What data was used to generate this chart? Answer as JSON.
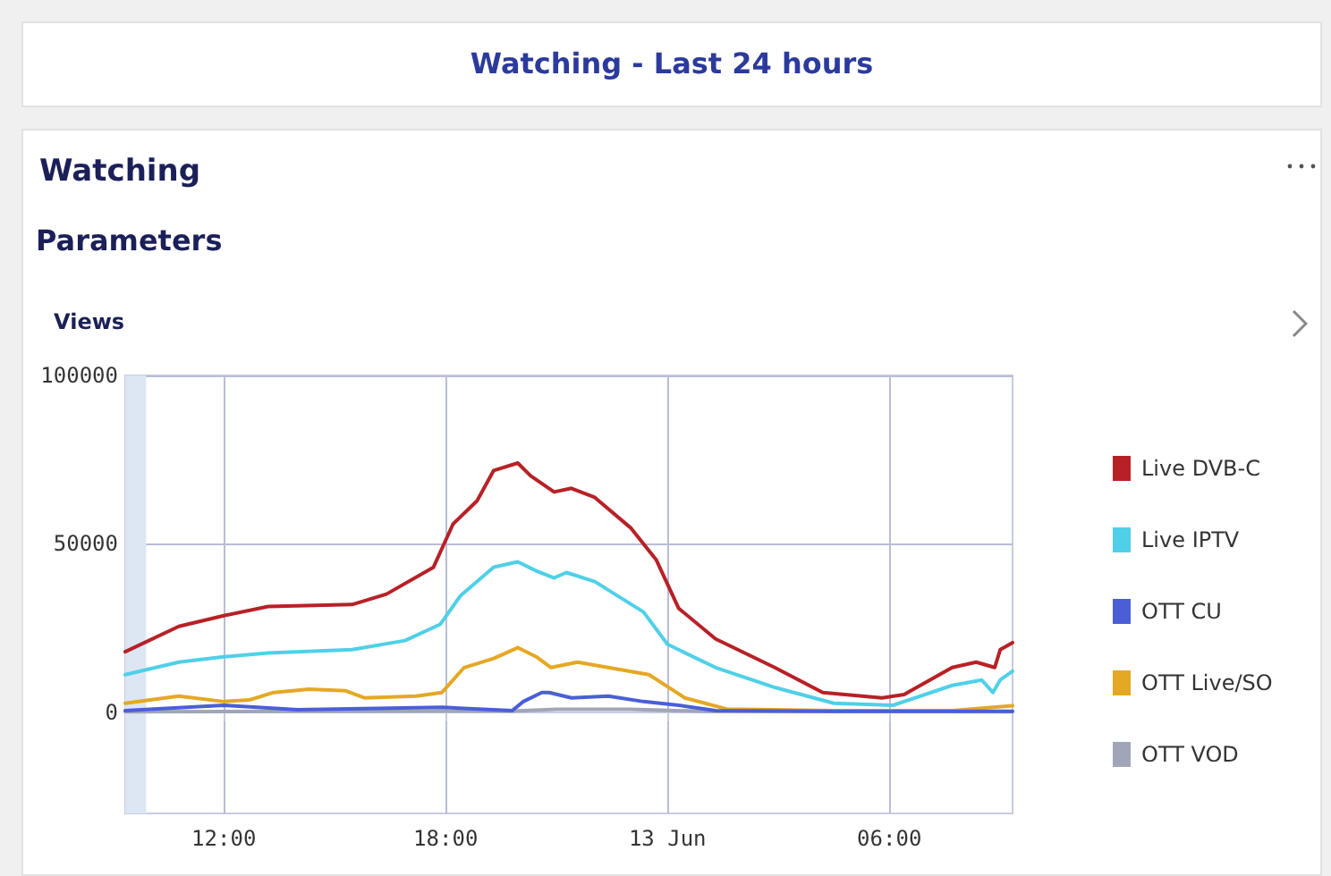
{
  "chart_data": {
    "type": "line",
    "title": "Watching - Last 24 hours",
    "subtitle": "Watching",
    "annotations": [
      "Parameters"
    ],
    "ylabel": "Views",
    "xlim": [
      "--06-12T09:20",
      "--06-13T09:20"
    ],
    "xticks": [
      {
        "value": "--06-12T12:00",
        "label": "12:00"
      },
      {
        "value": "--06-12T18:00",
        "label": "18:00"
      },
      {
        "value": "--06-13T00:00",
        "label": "13 Jun"
      },
      {
        "value": "--06-13T06:00",
        "label": "06:00"
      }
    ],
    "ylim": [
      -30000,
      100000
    ],
    "yticks": [
      0,
      50000,
      100000
    ],
    "grid": true,
    "legend": "right",
    "marker": "none",
    "line_style": "solid",
    "bands": [
      {
        "axis": "x",
        "from": "--06-12T09:20",
        "to": "--06-12T09:54",
        "color": "#dde7f3"
      }
    ],
    "series": [
      {
        "name": "Live DVB-C",
        "color": "#b72126",
        "x": [
          "--06-12T09:20",
          "--06-12T10:47",
          "--06-12T12:00",
          "--06-12T13:12",
          "--06-12T15:28",
          "--06-12T16:24",
          "--06-12T17:40",
          "--06-12T18:12",
          "--06-12T18:51",
          "--06-12T19:18",
          "--06-12T19:57",
          "--06-12T20:18",
          "--06-12T20:56",
          "--06-12T21:24",
          "--06-12T22:02",
          "--06-12T23:00",
          "--06-12T23:42",
          "--06-13T00:18",
          "--06-13T01:18",
          "--06-13T02:54",
          "--06-13T04:12",
          "--06-13T05:48",
          "--06-13T06:24",
          "--06-13T07:42",
          "--06-13T08:21",
          "--06-13T08:51",
          "--06-13T09:00",
          "--06-13T09:20"
        ],
        "values": [
          18000,
          25500,
          28700,
          31400,
          32000,
          35100,
          43000,
          55900,
          62800,
          71800,
          74000,
          70200,
          65400,
          66500,
          63800,
          54800,
          45200,
          30900,
          21800,
          13300,
          5900,
          4300,
          5300,
          13300,
          14900,
          13300,
          18600,
          20700
        ]
      },
      {
        "name": "Live IPTV",
        "color": "#4fd0e8",
        "x": [
          "--06-12T09:20",
          "--06-12T10:47",
          "--06-12T12:00",
          "--06-12T13:12",
          "--06-12T15:28",
          "--06-12T16:54",
          "--06-12T17:51",
          "--06-12T18:24",
          "--06-12T19:18",
          "--06-12T19:57",
          "--06-12T20:27",
          "--06-12T20:56",
          "--06-12T21:16",
          "--06-12T22:02",
          "--06-12T23:21",
          "--06-13T00:00",
          "--06-13T01:18",
          "--06-13T02:54",
          "--06-13T04:30",
          "--06-13T06:06",
          "--06-13T07:42",
          "--06-13T08:30",
          "--06-13T08:48",
          "--06-13T09:00",
          "--06-13T09:20"
        ],
        "values": [
          11200,
          14900,
          16500,
          17600,
          18600,
          21300,
          26100,
          34600,
          43100,
          44700,
          42000,
          39900,
          41500,
          38800,
          29800,
          20200,
          13300,
          7400,
          2700,
          2100,
          8000,
          9600,
          5900,
          9600,
          12200
        ]
      },
      {
        "name": "OTT CU",
        "color": "#4a5fd6",
        "x": [
          "--06-12T09:20",
          "--06-12T12:00",
          "--06-12T14:00",
          "--06-12T17:54",
          "--06-12T19:48",
          "--06-12T20:06",
          "--06-12T20:36",
          "--06-12T20:48",
          "--06-12T21:24",
          "--06-12T22:24",
          "--06-12T23:21",
          "--06-13T00:18",
          "--06-13T01:18",
          "--06-13T04:30",
          "--06-13T09:20"
        ],
        "values": [
          500,
          2100,
          800,
          1500,
          500,
          3200,
          5900,
          5900,
          4300,
          4800,
          3200,
          2100,
          500,
          300,
          300
        ]
      },
      {
        "name": "OTT Live/SO",
        "color": "#e5a823",
        "x": [
          "--06-12T09:20",
          "--06-12T10:47",
          "--06-12T12:00",
          "--06-12T12:42",
          "--06-12T13:21",
          "--06-12T14:18",
          "--06-12T15:18",
          "--06-12T15:48",
          "--06-12T17:12",
          "--06-12T17:54",
          "--06-12T18:30",
          "--06-12T19:18",
          "--06-12T19:57",
          "--06-12T20:27",
          "--06-12T20:51",
          "--06-12T21:34",
          "--06-12T23:30",
          "--06-13T00:28",
          "--06-13T01:36",
          "--06-13T04:30",
          "--06-13T07:42",
          "--06-13T09:20"
        ],
        "values": [
          2700,
          4800,
          3200,
          3700,
          5900,
          6900,
          6400,
          4300,
          4800,
          5900,
          13300,
          16000,
          19200,
          16500,
          13300,
          14900,
          11200,
          4300,
          1000,
          500,
          500,
          2000
        ]
      },
      {
        "name": "OTT VOD",
        "color": "#a0a5b8",
        "x": [
          "--06-12T09:20",
          "--06-12T15:00",
          "--06-12T19:48",
          "--06-12T21:00",
          "--06-12T23:00",
          "--06-13T01:00",
          "--06-13T09:20"
        ],
        "values": [
          200,
          300,
          400,
          900,
          900,
          300,
          200
        ]
      }
    ]
  }
}
